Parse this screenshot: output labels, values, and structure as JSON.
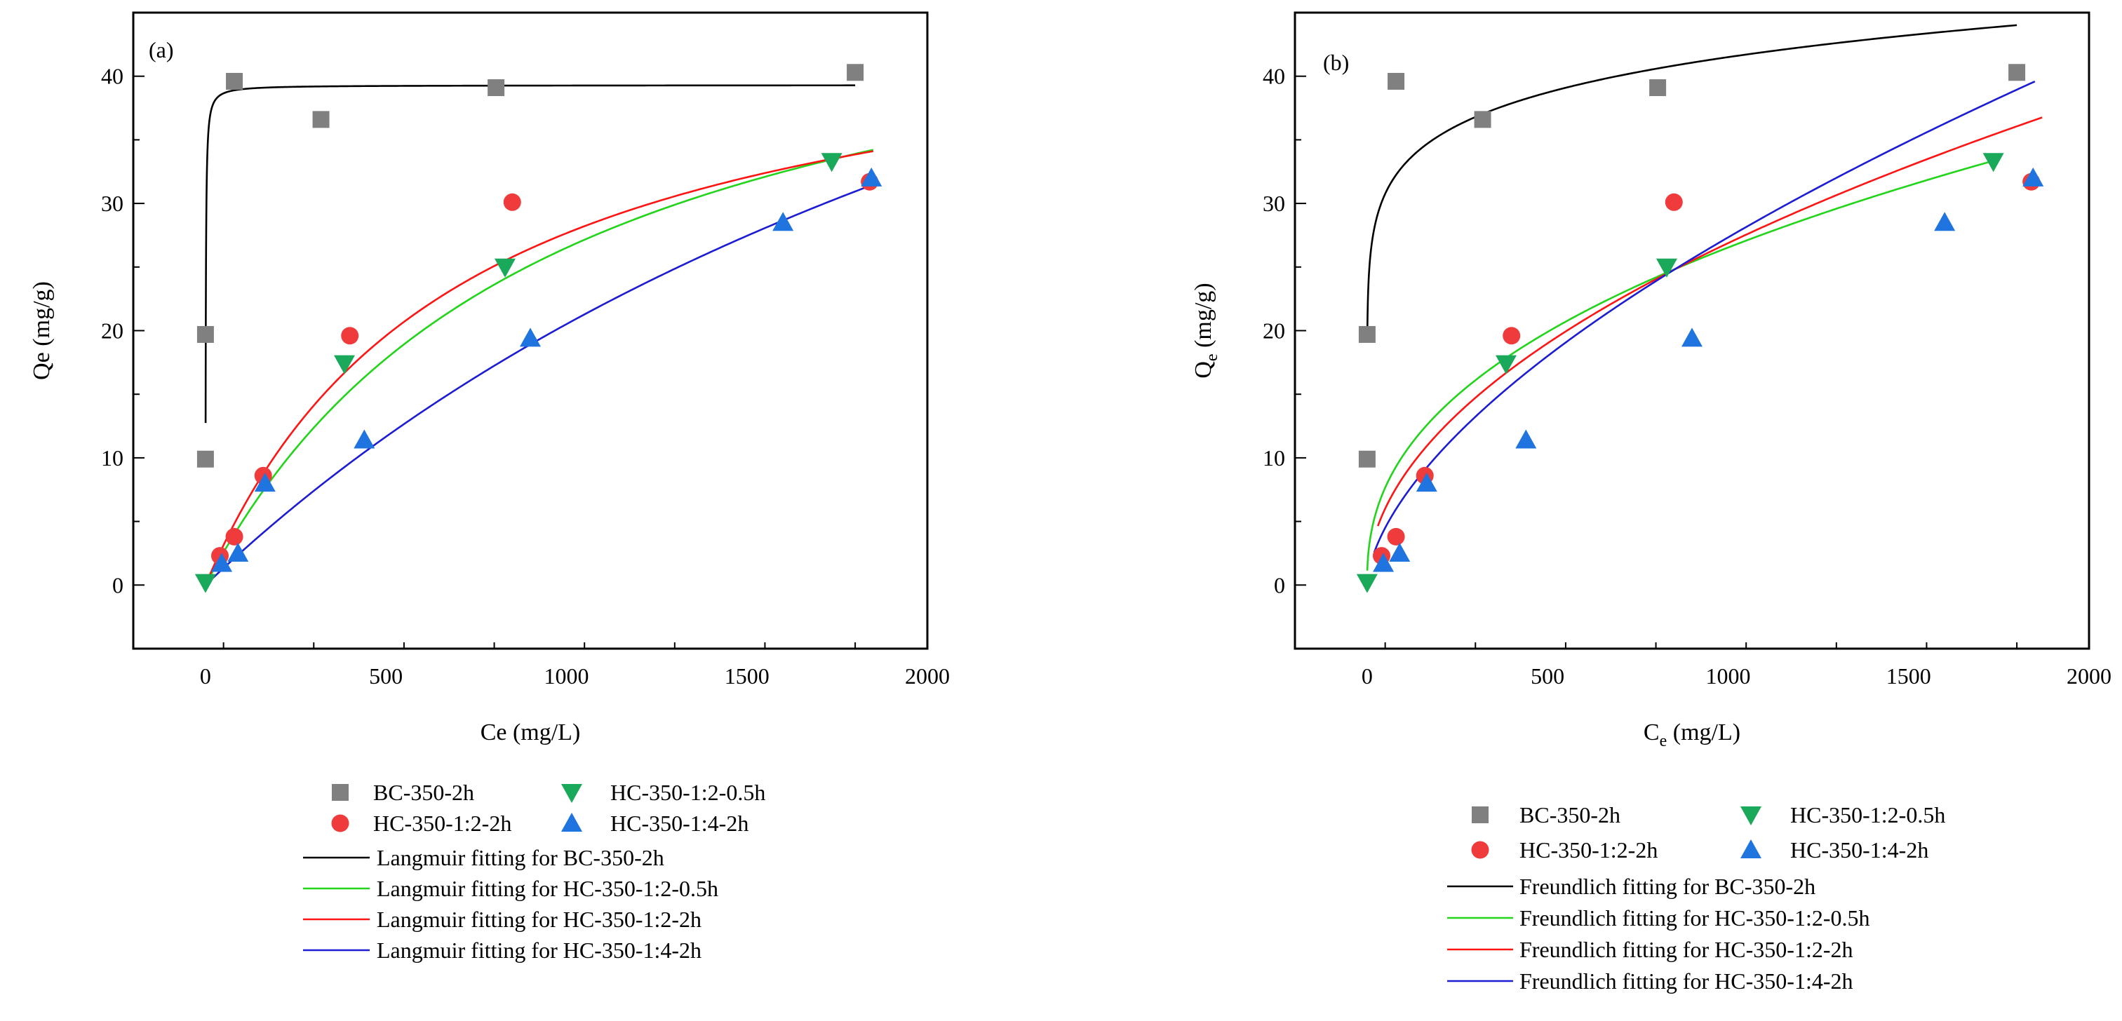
{
  "colors": {
    "bc": "#808080",
    "hc12_2h": "#ef3b3b",
    "hc12_05h": "#1aa85a",
    "hc14_2h": "#1f74e0",
    "fit_bc": "#000000",
    "fit_hc12_05h": "#22d41a",
    "fit_hc12_2h": "#ff1414",
    "fit_hc14_2h": "#1c1cd4"
  },
  "chart_data": [
    {
      "type": "scatter",
      "panel_label": "(a)",
      "xlabel": "Ce (mg/L)",
      "ylabel": "Qe  (mg/g)",
      "xlim": [
        -200,
        2000
      ],
      "ylim": [
        -5,
        45
      ],
      "xticks": [
        0,
        500,
        1000,
        1500,
        2000
      ],
      "yticks": [
        0,
        10,
        20,
        30,
        40
      ],
      "series": [
        {
          "name": "BC-350-2h",
          "marker": "square",
          "color": "#808080",
          "points": [
            [
              0,
              9.9
            ],
            [
              0,
              19.7
            ],
            [
              80,
              39.6
            ],
            [
              320,
              36.6
            ],
            [
              805,
              39.1
            ],
            [
              1800,
              40.3
            ]
          ]
        },
        {
          "name": "HC-350-1:2-2h",
          "marker": "circle",
          "color": "#ef3b3b",
          "points": [
            [
              40,
              2.3
            ],
            [
              80,
              3.8
            ],
            [
              160,
              8.6
            ],
            [
              400,
              19.6
            ],
            [
              850,
              30.1
            ],
            [
              1840,
              31.7
            ]
          ]
        },
        {
          "name": "HC-350-1:2-0.5h",
          "marker": "triangle-down",
          "color": "#1aa85a",
          "points": [
            [
              0,
              0.2
            ],
            [
              385,
              17.4
            ],
            [
              830,
              25.0
            ],
            [
              1735,
              33.3
            ]
          ]
        },
        {
          "name": "HC-350-1:4-2h",
          "marker": "triangle-up",
          "color": "#1f74e0",
          "points": [
            [
              45,
              1.7
            ],
            [
              90,
              2.5
            ],
            [
              165,
              8.0
            ],
            [
              440,
              11.4
            ],
            [
              900,
              19.4
            ],
            [
              1600,
              28.5
            ],
            [
              1845,
              32.0
            ]
          ]
        }
      ],
      "fits": [
        {
          "name": "Langmuir fitting for  BC-350-2h",
          "model": "langmuir",
          "qmax": 39.3,
          "K": 1.2,
          "xmin": 0.4,
          "xmax": 1800,
          "color": "#000000"
        },
        {
          "name": "Langmuir fitting for HC-350-1:2-0.5h",
          "model": "langmuir",
          "qmax": 52.0,
          "K": 0.00104,
          "xmin": 0,
          "xmax": 1850,
          "color": "#22d41a"
        },
        {
          "name": "Langmuir fitting for HC-350-1:2-2h",
          "model": "langmuir",
          "qmax": 47.0,
          "K": 0.00143,
          "xmin": 0,
          "xmax": 1850,
          "color": "#ff1414"
        },
        {
          "name": "Langmuir fitting for HC-350-1:4-2h",
          "model": "langmuir",
          "qmax": 85.0,
          "K": 0.000318,
          "xmin": 0,
          "xmax": 1850,
          "color": "#1c1cd4"
        }
      ],
      "legend": {
        "markers": [
          "BC-350-2h",
          "HC-350-1:2-0.5h",
          "HC-350-1:2-2h",
          "HC-350-1:4-2h"
        ],
        "lines": [
          "Langmuir fitting for  BC-350-2h",
          "Langmuir fitting for HC-350-1:2-0.5h",
          "Langmuir fitting for HC-350-1:2-2h",
          "Langmuir fitting for HC-350-1:4-2h"
        ]
      }
    },
    {
      "type": "scatter",
      "panel_label": "(b)",
      "xlabel": "C",
      "xlabel_sub": "e",
      "xlabel_tail": " (mg/L)",
      "ylabel": "Q",
      "ylabel_sub": "e",
      "ylabel_tail": "  (mg/g)",
      "xlim": [
        -200,
        2000
      ],
      "ylim": [
        -5,
        45
      ],
      "xticks": [
        0,
        500,
        1000,
        1500,
        2000
      ],
      "yticks": [
        0,
        10,
        20,
        30,
        40
      ],
      "series": [
        {
          "name": "BC-350-2h",
          "marker": "square",
          "color": "#808080",
          "points": [
            [
              0,
              9.9
            ],
            [
              0,
              19.7
            ],
            [
              80,
              39.6
            ],
            [
              320,
              36.6
            ],
            [
              805,
              39.1
            ],
            [
              1800,
              40.3
            ]
          ]
        },
        {
          "name": "HC-350-1:2-2h",
          "marker": "circle",
          "color": "#ef3b3b",
          "points": [
            [
              40,
              2.3
            ],
            [
              80,
              3.8
            ],
            [
              160,
              8.6
            ],
            [
              400,
              19.6
            ],
            [
              850,
              30.1
            ],
            [
              1840,
              31.7
            ]
          ]
        },
        {
          "name": "HC-350-1:2-0.5h",
          "marker": "triangle-down",
          "color": "#1aa85a",
          "points": [
            [
              0,
              0.2
            ],
            [
              385,
              17.4
            ],
            [
              830,
              25.0
            ],
            [
              1735,
              33.3
            ]
          ]
        },
        {
          "name": "HC-350-1:4-2h",
          "marker": "triangle-up",
          "color": "#1f74e0",
          "points": [
            [
              45,
              1.7
            ],
            [
              90,
              2.5
            ],
            [
              165,
              8.0
            ],
            [
              440,
              11.4
            ],
            [
              900,
              19.4
            ],
            [
              1600,
              28.5
            ],
            [
              1845,
              32.0
            ]
          ]
        }
      ],
      "fits": [
        {
          "name": "Freundlich fitting for BC-350-2h",
          "model": "freundlich",
          "Kf": 20.8,
          "n": 10.0,
          "xmin": 0.5,
          "xmax": 1800,
          "color": "#000000"
        },
        {
          "name": "Freundlich fitting for HC-350-1:2-0.5h",
          "model": "freundlich",
          "Kf": 1.51,
          "n": 2.41,
          "xmin": 0.5,
          "xmax": 1740,
          "color": "#22d41a"
        },
        {
          "name": "Freundlich fitting for HC-350-1:2-2h",
          "model": "freundlich",
          "Kf": 0.85,
          "n": 2.0,
          "xmin": 30,
          "xmax": 1870,
          "color": "#ff1414"
        },
        {
          "name": "Freundlich fitting for  HC-350-1:4-2h",
          "model": "freundlich",
          "Kf": 0.426,
          "n": 1.66,
          "xmin": 20,
          "xmax": 1850,
          "color": "#1c1cd4"
        }
      ],
      "legend": {
        "markers": [
          "BC-350-2h",
          "HC-350-1:2-0.5h",
          "HC-350-1:2-2h",
          "HC-350-1:4-2h"
        ],
        "lines": [
          "Freundlich fitting for BC-350-2h",
          "Freundlich fitting for HC-350-1:2-0.5h",
          "Freundlich fitting for HC-350-1:2-2h",
          "Freundlich fitting for  HC-350-1:4-2h"
        ]
      }
    }
  ]
}
